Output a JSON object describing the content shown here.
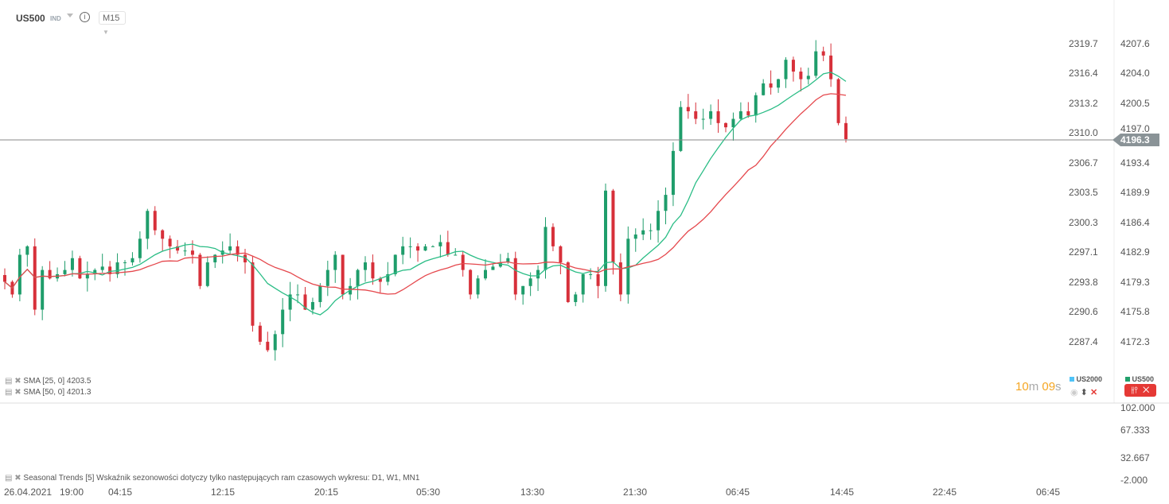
{
  "header": {
    "symbol": "US500",
    "type": "IND",
    "info_icon": "info-icon",
    "timeframe": "M15"
  },
  "right_axis": [
    "4207.6",
    "4204.0",
    "4200.5",
    "4197.0",
    "4193.4",
    "4189.9",
    "4186.4",
    "4182.9",
    "4179.3",
    "4175.8",
    "4172.3"
  ],
  "left_axis": [
    "2319.7",
    "2316.4",
    "2313.2",
    "2310.0",
    "2306.7",
    "2303.5",
    "2300.3",
    "2297.1",
    "2293.8",
    "2290.6",
    "2287.4"
  ],
  "current_price": "4196.3",
  "indicators": [
    {
      "label": "SMA [25, 0] 4203.5",
      "color": "#2bbd86"
    },
    {
      "label": "SMA [50, 0] 4201.3",
      "color": "#e5484d"
    }
  ],
  "countdown": {
    "min": "10",
    "m": "m",
    "sec": "09",
    "s": "s"
  },
  "legend": [
    {
      "name": "US2000",
      "color": "#4fc3f7"
    },
    {
      "name": "US500",
      "color": "#22a06b"
    }
  ],
  "lower_pane": {
    "label": "Seasonal Trends [5] Wskaźnik sezonowości dotyczy tylko następujących ram czasowych wykresu: D1, W1, MN1",
    "axis": [
      "102.000",
      "67.333",
      "32.667",
      "-2.000"
    ]
  },
  "time_axis": [
    "26.04.2021",
    "19:00",
    "04:15",
    "12:15",
    "20:15",
    "05:30",
    "13:30",
    "21:30",
    "06:45",
    "14:45",
    "22:45",
    "06:45"
  ],
  "chart_data": {
    "type": "candlestick",
    "ylim": [
      4166.2,
      4210.9
    ],
    "up_color": "#1f9d6b",
    "down_color": "#d7303a",
    "closes": [
      4179.4,
      4177.9,
      4182.6,
      4183.6,
      4176.1,
      4180.8,
      4179.8,
      4180.3,
      4180.8,
      4182.2,
      4179.8,
      4180.3,
      4180.8,
      4181.2,
      4180.3,
      4181.7,
      4181.7,
      4182.2,
      4184.5,
      4187.8,
      4185.5,
      4184.5,
      4183.6,
      4183.1,
      4183.1,
      4182.6,
      4178.9,
      4181.7,
      4182.6,
      4183.1,
      4183.6,
      4182.6,
      4181.7,
      4174.2,
      4172.3,
      4171.3,
      4173.2,
      4176.1,
      4177.9,
      4177.9,
      4176.1,
      4177.0,
      4178.9,
      4180.8,
      4182.6,
      4177.9,
      4178.9,
      4180.8,
      4181.7,
      4179.8,
      4179.4,
      4180.3,
      4182.6,
      4183.6,
      4183.6,
      4183.1,
      4183.6,
      4183.6,
      4184.1,
      4182.6,
      4182.6,
      4180.8,
      4177.9,
      4179.8,
      4180.8,
      4181.2,
      4181.7,
      4182.2,
      4177.9,
      4178.9,
      4179.8,
      4180.8,
      4185.9,
      4183.6,
      4181.7,
      4177.0,
      4177.9,
      4180.3,
      4180.3,
      4178.9,
      4190.2,
      4181.7,
      4177.9,
      4184.5,
      4185.0,
      4185.5,
      4185.5,
      4187.8,
      4189.7,
      4194.9,
      4200.1,
      4199.6,
      4198.7,
      4198.7,
      4199.6,
      4198.2,
      4197.7,
      4198.7,
      4199.6,
      4199.1,
      4201.5,
      4202.9,
      4202.4,
      4203.4,
      4205.7,
      4204.3,
      4203.4,
      4203.8,
      4206.7,
      4206.2,
      4203.4,
      4198.2,
      4196.3
    ]
  }
}
